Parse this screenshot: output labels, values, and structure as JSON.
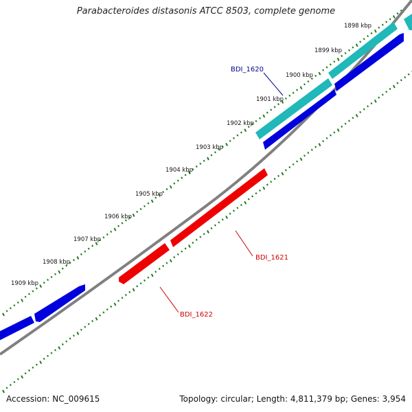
{
  "title": "Parabacteroides distasonis ATCC 8503, complete genome",
  "footer": {
    "accession": "Accession: NC_009615",
    "summary": "Topology: circular; Length: 4,811,379 bp; Genes: 3,954"
  },
  "colors": {
    "backbone": "#808080",
    "tick": "#1f7a1f",
    "forward_gene": "#0000dd",
    "highlight_gene": "#20b8b8",
    "reverse_gene": "#ee0000",
    "label_blue": "#00008b",
    "label_red": "#cc0000"
  },
  "scale_labels": [
    "1898 kbp",
    "1899 kbp",
    "1900 kbp",
    "1901 kbp",
    "1902 kbp",
    "1903 kbp",
    "1904 kbp",
    "1905 kbp",
    "1906 kbp",
    "1907 kbp",
    "1908 kbp",
    "1909 kbp"
  ],
  "gene_labels": [
    {
      "id": "bdi1620",
      "text": "BDI_1620",
      "color": "#00008b"
    },
    {
      "id": "bdi1621",
      "text": "BDI_1621",
      "color": "#cc0000"
    },
    {
      "id": "bdi1622",
      "text": "BDI_1622",
      "color": "#cc0000"
    }
  ]
}
